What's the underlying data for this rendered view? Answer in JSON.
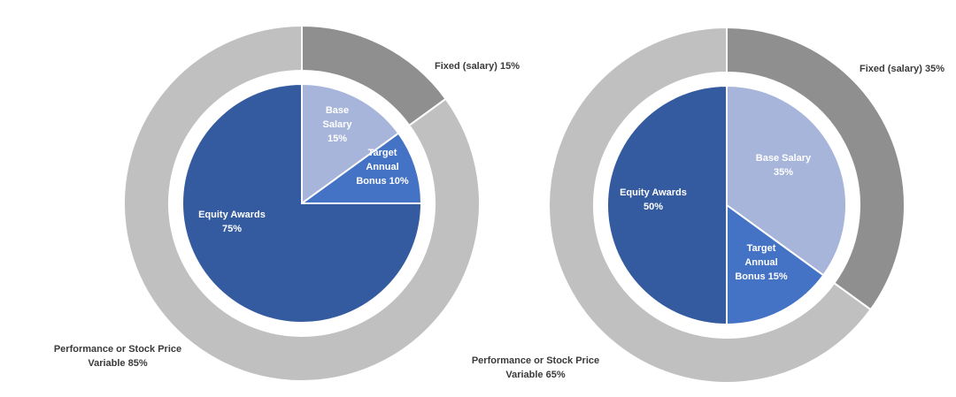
{
  "colors": {
    "outer_fixed": "#8f8f8f",
    "outer_variable": "#c0c0c0",
    "base_salary": "#a7b5da",
    "target_bonus": "#4472c4",
    "equity_awards": "#345ba0",
    "label_dark": "#3a3a3a",
    "label_light": "#ffffff"
  },
  "chart_data": [
    {
      "type": "pie",
      "outer_ring": {
        "segments": [
          {
            "label": "Fixed (salary) 15%",
            "value": 15,
            "kind": "fixed"
          },
          {
            "label": "Performance or Stock Price Variable 85%",
            "lines": [
              "Performance or Stock Price",
              "Variable 85%"
            ],
            "value": 85,
            "kind": "variable"
          }
        ]
      },
      "inner_pie": {
        "slices": [
          {
            "label": "Base Salary 15%",
            "lines": [
              "Base",
              "Salary",
              "15%"
            ],
            "value": 15,
            "kind": "base_salary"
          },
          {
            "label": "Target Annual Bonus 10%",
            "lines": [
              "Target",
              "Annual",
              "Bonus 10%"
            ],
            "value": 10,
            "kind": "target_bonus"
          },
          {
            "label": "Equity Awards 75%",
            "lines": [
              "Equity Awards",
              "75%"
            ],
            "value": 75,
            "kind": "equity_awards"
          }
        ]
      }
    },
    {
      "type": "pie",
      "outer_ring": {
        "segments": [
          {
            "label": "Fixed (salary) 35%",
            "value": 35,
            "kind": "fixed"
          },
          {
            "label": "Performance or Stock Price Variable 65%",
            "lines": [
              "Performance or Stock Price",
              "Variable 65%"
            ],
            "value": 65,
            "kind": "variable"
          }
        ]
      },
      "inner_pie": {
        "slices": [
          {
            "label": "Base Salary 35%",
            "lines": [
              "Base Salary",
              "35%"
            ],
            "value": 35,
            "kind": "base_salary"
          },
          {
            "label": "Target Annual Bonus 15%",
            "lines": [
              "Target",
              "Annual",
              "Bonus 15%"
            ],
            "value": 15,
            "kind": "target_bonus"
          },
          {
            "label": "Equity Awards 50%",
            "lines": [
              "Equity Awards",
              "50%"
            ],
            "value": 50,
            "kind": "equity_awards"
          }
        ]
      }
    }
  ]
}
